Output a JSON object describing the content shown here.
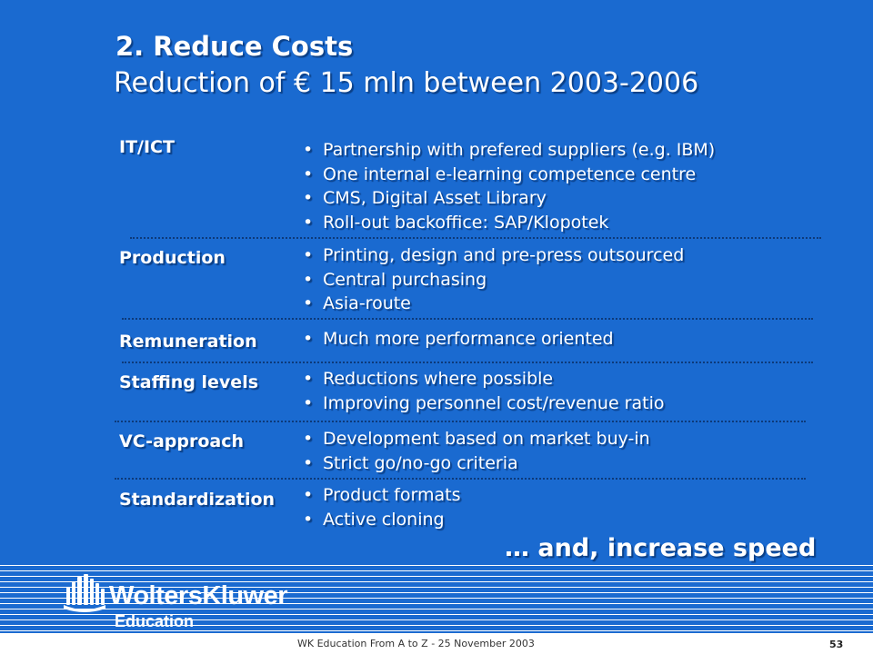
{
  "title": {
    "line1": "2. Reduce Costs",
    "line2": "Reduction of € 15 mln between 2003-2006"
  },
  "bullet_glyph": "•",
  "sections": [
    {
      "category": "IT/ICT",
      "bullets": [
        "Partnership with prefered suppliers (e.g. IBM)",
        "One internal e-learning competence centre",
        "CMS, Digital Asset Library",
        "Roll-out backoffice: SAP/Klopotek"
      ]
    },
    {
      "category": "Production",
      "bullets": [
        "Printing, design and pre-press outsourced",
        "Central purchasing",
        "Asia-route"
      ]
    },
    {
      "category": "Remuneration",
      "bullets": [
        "Much more performance oriented"
      ]
    },
    {
      "category": "Staffing levels",
      "bullets": [
        "Reductions where possible",
        "Improving personnel cost/revenue ratio"
      ]
    },
    {
      "category": "VC-approach",
      "bullets": [
        "Development based on market buy-in",
        "Strict go/no-go criteria"
      ]
    },
    {
      "category": "Standardization",
      "bullets": [
        "Product formats",
        "Active cloning"
      ]
    }
  ],
  "closing": "… and, increase speed",
  "logo": {
    "name": "WoltersKluwer",
    "division": "Education"
  },
  "footer": {
    "text": "WK Education From A to Z - 25 November 2003",
    "page_number": "53"
  },
  "colors": {
    "background": "#1a6ad0",
    "text": "#ffffff",
    "separator": "#0d3a7a"
  }
}
